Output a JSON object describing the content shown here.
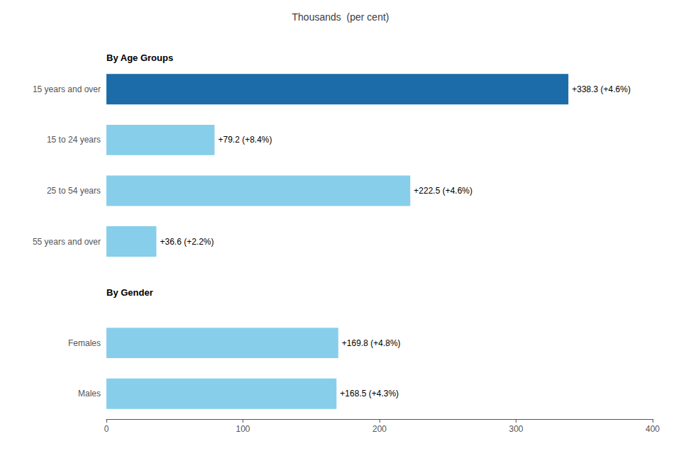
{
  "chart_data": {
    "type": "bar",
    "orientation": "horizontal",
    "title": "Thousands  (per cent)",
    "annotations": [
      "By Age Groups",
      "By Gender"
    ],
    "categories": [
      "15 years and over",
      "15 to 24 years",
      "25 to 54 years",
      "55 years and over",
      null,
      "Females",
      "Males"
    ],
    "values": [
      338.3,
      79.2,
      222.5,
      36.6,
      null,
      169.8,
      168.5
    ],
    "value_labels": [
      "+338.3 (+4.6%)",
      "+79.2 (+8.4%)",
      "+222.5 (+4.6%)",
      "+36.6 (+2.2%)",
      null,
      "+169.8 (+4.8%)",
      "+168.5 (+4.3%)"
    ],
    "colors": [
      "#1B6CA8",
      "#87CEEB",
      "#87CEEB",
      "#87CEEB",
      null,
      "#87CEEB",
      "#87CEEB"
    ],
    "data_labels": true,
    "xlim": [
      0,
      400
    ],
    "xticks": [
      0,
      100,
      200,
      300,
      400
    ],
    "grid": false
  }
}
